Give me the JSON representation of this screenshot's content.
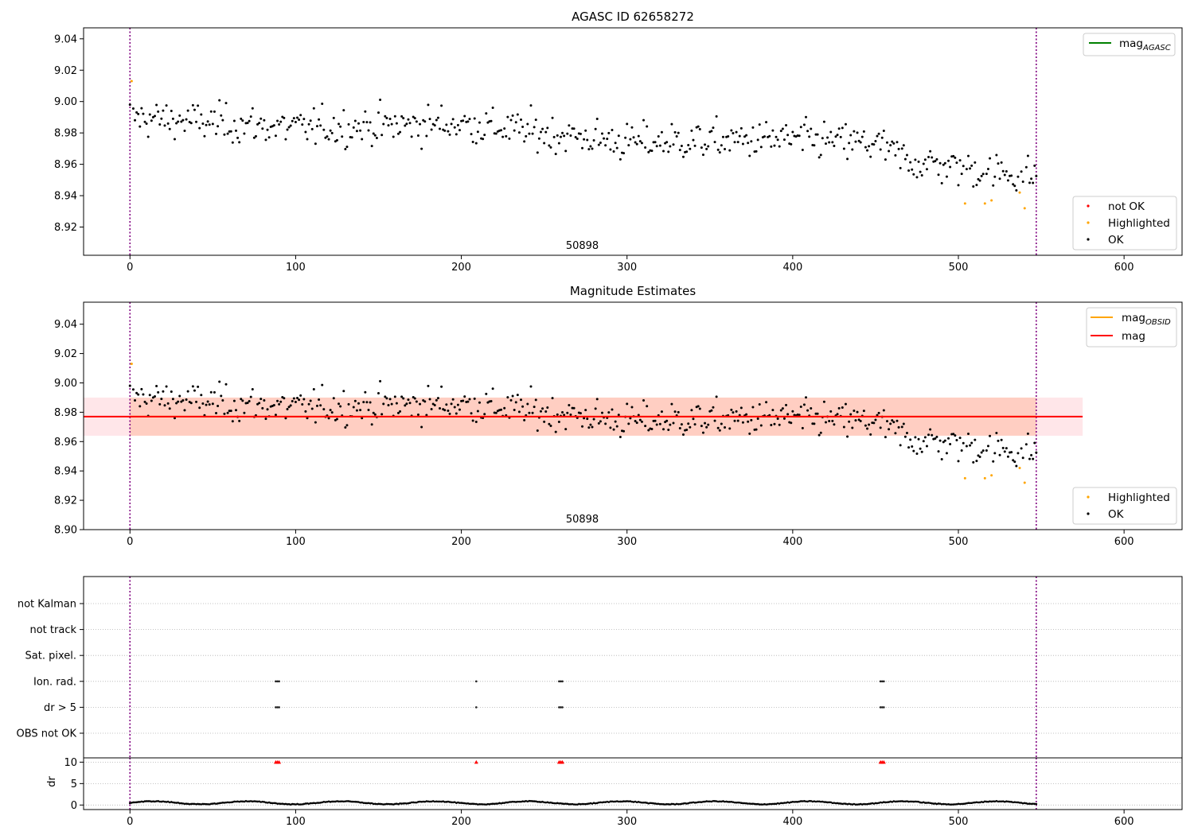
{
  "chart_data": [
    {
      "type": "scatter",
      "title": "AGASC ID 62658272",
      "xlim": [
        -28,
        635
      ],
      "ylim": [
        8.902,
        9.047
      ],
      "x_ticks": [
        0,
        100,
        200,
        300,
        400,
        500,
        600
      ],
      "y_ticks": [
        8.92,
        8.94,
        8.96,
        8.98,
        9.0,
        9.02,
        9.04
      ],
      "vlines": [
        0,
        547
      ],
      "annotation": {
        "text": "50898",
        "x": 273,
        "y": 8.908
      },
      "lines_legend": [
        {
          "name": "mag_{AGASC}",
          "color": "#008000"
        }
      ],
      "points_legend": [
        {
          "name": "not OK",
          "color": "#ff0000"
        },
        {
          "name": "Highlighted",
          "color": "#ffa500"
        },
        {
          "name": "OK",
          "color": "#000000"
        }
      ],
      "series": [
        {
          "name": "Highlighted",
          "color": "#ffa500",
          "x": [
            1,
            504,
            516,
            520,
            537,
            540
          ],
          "y": [
            9.013,
            8.935,
            8.935,
            8.937,
            8.942,
            8.932
          ]
        },
        {
          "name": "OK",
          "color": "#000000",
          "trend": [
            [
              0,
              8.99
            ],
            [
              100,
              8.983
            ],
            [
              200,
              8.986
            ],
            [
              300,
              8.974
            ],
            [
              400,
              8.976
            ],
            [
              450,
              8.973
            ],
            [
              470,
              8.962
            ],
            [
              500,
              8.958
            ],
            [
              548,
              8.952
            ]
          ],
          "n": 548,
          "highlighted_index": [
            1,
            504,
            516,
            520,
            537,
            540
          ]
        }
      ]
    },
    {
      "type": "scatter",
      "title": "Magnitude Estimates",
      "xlim": [
        -28,
        635
      ],
      "ylim": [
        8.9,
        9.055
      ],
      "x_ticks": [
        0,
        100,
        200,
        300,
        400,
        500,
        600
      ],
      "y_ticks": [
        8.9,
        8.92,
        8.94,
        8.96,
        8.98,
        9.0,
        9.02,
        9.04
      ],
      "vlines": [
        0,
        547
      ],
      "annotation": {
        "text": "50898",
        "x": 273,
        "y": 8.907
      },
      "bands": [
        {
          "x": [
            -28,
            575
          ],
          "y": [
            8.964,
            8.99
          ],
          "color": "#ffb6c1",
          "opacity": 0.35
        },
        {
          "x": [
            0,
            547
          ],
          "y": [
            8.964,
            8.99
          ],
          "color": "#ffa07a",
          "opacity": 0.35
        }
      ],
      "hlines": [
        {
          "name": "mag_{OBSID}",
          "color": "#ffa500",
          "y": 8.977,
          "x": [
            0,
            547
          ]
        },
        {
          "name": "mag",
          "color": "#ff0000",
          "y": 8.977,
          "x": [
            -28,
            575
          ]
        }
      ],
      "lines_legend": [
        {
          "name": "mag_{OBSID}",
          "color": "#ffa500"
        },
        {
          "name": "mag",
          "color": "#ff0000"
        }
      ],
      "points_legend": [
        {
          "name": "Highlighted",
          "color": "#ffa500"
        },
        {
          "name": "OK",
          "color": "#000000"
        }
      ]
    },
    {
      "type": "scatter",
      "xlim": [
        -28,
        635
      ],
      "x_ticks": [
        0,
        100,
        200,
        300,
        400,
        500,
        600
      ],
      "vlines": [
        0,
        547
      ],
      "categories": [
        "not Kalman",
        "not track",
        "Sat. pixel.",
        "Ion. rad.",
        "dr > 5",
        "OBS not OK"
      ],
      "flag_x": {
        "Ion. rad.": [
          88,
          89,
          90,
          209,
          259,
          260,
          261,
          453,
          454,
          455
        ],
        "dr > 5": [
          88,
          89,
          90,
          209,
          259,
          260,
          261,
          453,
          454,
          455
        ]
      }
    },
    {
      "type": "scatter",
      "ylabel": "dr",
      "xlim": [
        -28,
        635
      ],
      "ylim": [
        -0.5,
        11
      ],
      "y_ticks": [
        0,
        5,
        10
      ],
      "x_ticks": [
        0,
        100,
        200,
        300,
        400,
        500,
        600
      ],
      "vlines": [
        0,
        547
      ],
      "clipped_x": [
        88,
        89,
        90,
        209,
        259,
        260,
        261,
        453,
        454,
        455
      ],
      "clip_value": 10
    }
  ]
}
